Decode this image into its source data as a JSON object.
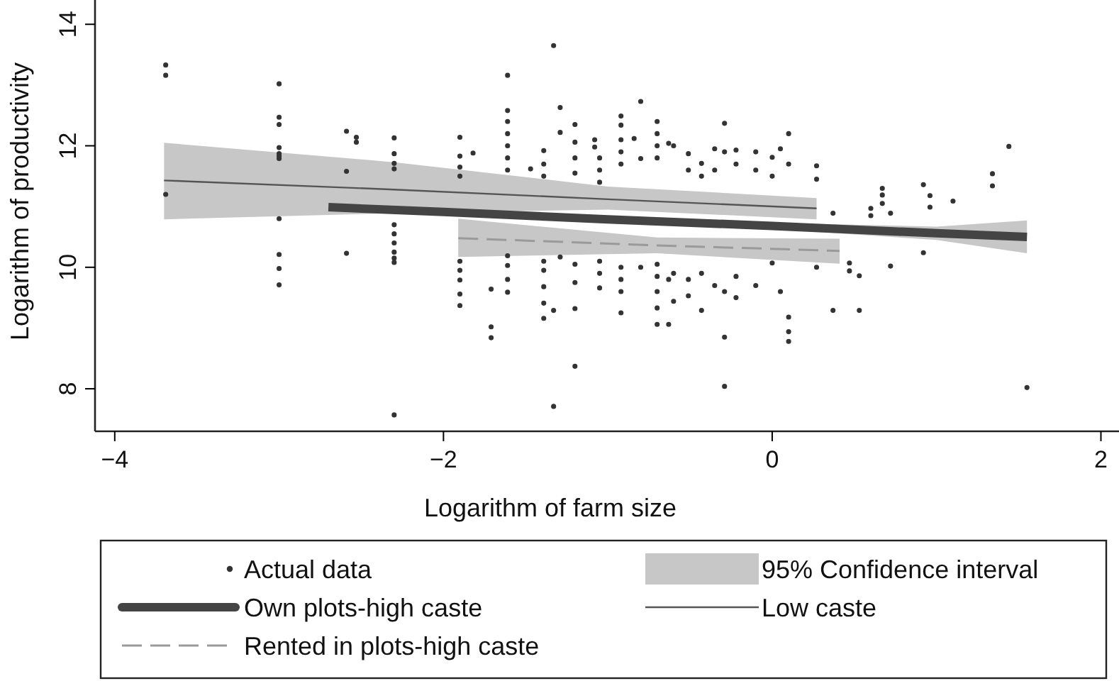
{
  "chart_data": {
    "type": "scatter",
    "xlabel": "Logarithm of farm size",
    "ylabel": "Logarithm of productivity",
    "xlim": [
      -4.12,
      2.11
    ],
    "ylim": [
      7.3,
      14.4
    ],
    "xticks": [
      {
        "value": -4,
        "label": "−4"
      },
      {
        "value": -2,
        "label": "−2"
      },
      0,
      2
    ],
    "yticks": [
      8,
      10,
      12,
      14
    ],
    "grid": false,
    "legend": "bottom",
    "annotations": [
      "95% Confidence interval"
    ],
    "series": [
      {
        "name": "Actual data",
        "marker": "circle",
        "color": "#333333",
        "x": [
          -3.69,
          -3.69,
          -3.69,
          -3.0,
          -3.0,
          -3.0,
          -3.0,
          -3.0,
          -3.0,
          -3.0,
          -3.0,
          -3.0,
          -3.0,
          -3.0,
          -2.59,
          -2.59,
          -2.59,
          -2.53,
          -2.53,
          -2.3,
          -2.3,
          -2.3,
          -2.3,
          -2.3,
          -2.3,
          -2.3,
          -2.3,
          -2.3,
          -2.3,
          -2.3,
          -1.9,
          -1.9,
          -1.9,
          -1.9,
          -1.9,
          -1.9,
          -1.9,
          -1.9,
          -1.9,
          -1.82,
          -1.71,
          -1.71,
          -1.71,
          -1.61,
          -1.61,
          -1.61,
          -1.61,
          -1.61,
          -1.61,
          -1.61,
          -1.61,
          -1.61,
          -1.61,
          -1.61,
          -1.47,
          -1.39,
          -1.39,
          -1.39,
          -1.39,
          -1.39,
          -1.39,
          -1.39,
          -1.39,
          -1.33,
          -1.33,
          -1.33,
          -1.29,
          -1.29,
          -1.29,
          -1.2,
          -1.2,
          -1.2,
          -1.2,
          -1.2,
          -1.2,
          -1.2,
          -1.2,
          -1.08,
          -1.08,
          -1.05,
          -1.05,
          -1.05,
          -1.05,
          -1.05,
          -1.05,
          -0.92,
          -0.92,
          -0.92,
          -0.92,
          -0.92,
          -0.92,
          -0.92,
          -0.92,
          -0.92,
          -0.84,
          -0.8,
          -0.8,
          -0.8,
          -0.7,
          -0.7,
          -0.7,
          -0.7,
          -0.7,
          -0.7,
          -0.7,
          -0.7,
          -0.7,
          -0.63,
          -0.63,
          -0.63,
          -0.6,
          -0.6,
          -0.6,
          -0.51,
          -0.51,
          -0.51,
          -0.51,
          -0.43,
          -0.43,
          -0.43,
          -0.43,
          -0.35,
          -0.35,
          -0.35,
          -0.29,
          -0.29,
          -0.29,
          -0.29,
          -0.29,
          -0.22,
          -0.22,
          -0.22,
          -0.22,
          -0.1,
          -0.1,
          -0.1,
          0.0,
          0.0,
          0.0,
          0.05,
          0.05,
          0.1,
          0.1,
          0.1,
          0.1,
          0.1,
          0.27,
          0.27,
          0.27,
          0.37,
          0.37,
          0.47,
          0.47,
          0.53,
          0.53,
          0.6,
          0.6,
          0.67,
          0.67,
          0.67,
          0.72,
          0.72,
          0.92,
          0.92,
          0.96,
          0.96,
          1.1,
          1.34,
          1.34,
          1.44,
          1.55
        ],
        "values": [
          13.33,
          13.16,
          11.2,
          13.02,
          12.47,
          12.35,
          11.97,
          11.87,
          11.83,
          11.79,
          10.8,
          10.21,
          9.98,
          9.71,
          12.24,
          11.58,
          10.23,
          12.14,
          12.06,
          12.13,
          11.87,
          11.71,
          11.62,
          10.7,
          10.55,
          10.4,
          10.25,
          10.15,
          10.08,
          7.57,
          12.14,
          11.83,
          11.65,
          11.5,
          10.1,
          9.95,
          9.79,
          9.56,
          9.37,
          11.88,
          9.64,
          9.02,
          8.84,
          13.16,
          12.58,
          12.4,
          12.2,
          12.0,
          11.8,
          11.6,
          10.19,
          10.03,
          9.8,
          9.59,
          11.62,
          11.92,
          11.7,
          11.5,
          10.1,
          9.95,
          9.68,
          9.41,
          9.16,
          13.65,
          9.29,
          7.71,
          12.63,
          12.22,
          10.17,
          12.35,
          12.06,
          11.8,
          11.55,
          10.05,
          9.75,
          9.32,
          8.37,
          12.1,
          11.98,
          11.8,
          11.6,
          11.4,
          10.1,
          9.9,
          9.66,
          12.49,
          12.34,
          12.1,
          11.9,
          11.7,
          10.0,
          9.8,
          9.6,
          9.25,
          12.12,
          12.73,
          11.79,
          10.0,
          12.4,
          12.2,
          12.0,
          11.8,
          10.05,
          9.85,
          9.6,
          9.33,
          9.06,
          12.04,
          9.8,
          9.06,
          12.0,
          9.9,
          9.44,
          11.87,
          11.6,
          9.8,
          9.53,
          11.71,
          11.5,
          9.9,
          9.29,
          11.95,
          11.6,
          9.7,
          12.37,
          11.9,
          9.6,
          8.85,
          8.04,
          11.93,
          11.7,
          9.85,
          9.5,
          11.9,
          11.6,
          9.7,
          11.81,
          11.5,
          10.07,
          11.95,
          9.6,
          12.2,
          11.7,
          9.18,
          8.94,
          8.78,
          11.67,
          11.45,
          10.0,
          10.89,
          9.29,
          10.07,
          9.94,
          9.86,
          9.29,
          10.97,
          10.85,
          11.3,
          11.19,
          11.05,
          10.89,
          10.02,
          11.36,
          10.24,
          11.18,
          10.99,
          11.09,
          11.54,
          11.34,
          11.99,
          8.02
        ]
      },
      {
        "name": "Own plots-high caste",
        "type": "line",
        "marker": "none",
        "color": "#444444",
        "line_style": "solid",
        "x": [
          -2.7,
          -2,
          -1,
          0,
          1,
          1.55
        ],
        "values": [
          10.99,
          10.91,
          10.79,
          10.68,
          10.56,
          10.5
        ],
        "lower": [
          10.92,
          10.86,
          10.75,
          10.63,
          10.45,
          10.23
        ],
        "upper": [
          11.06,
          10.96,
          10.83,
          10.73,
          10.67,
          10.77
        ]
      },
      {
        "name": "Low caste",
        "type": "line",
        "marker": "none",
        "color": "#555555",
        "line_style": "solid",
        "x": [
          -3.7,
          -2.3,
          -1,
          0.27
        ],
        "values": [
          11.43,
          11.28,
          11.12,
          10.97
        ],
        "lower": [
          10.79,
          10.89,
          10.95,
          10.79
        ],
        "upper": [
          12.05,
          11.73,
          11.33,
          11.14
        ]
      },
      {
        "name": "Rented in plots-high caste",
        "type": "line",
        "marker": "none",
        "color": "#9a9a9a",
        "line_style": "dashed",
        "x": [
          -1.91,
          -0.7,
          0.41
        ],
        "values": [
          10.48,
          10.36,
          10.27
        ],
        "lower": [
          10.17,
          10.23,
          10.06
        ],
        "upper": [
          10.8,
          10.49,
          10.47
        ]
      }
    ]
  }
}
